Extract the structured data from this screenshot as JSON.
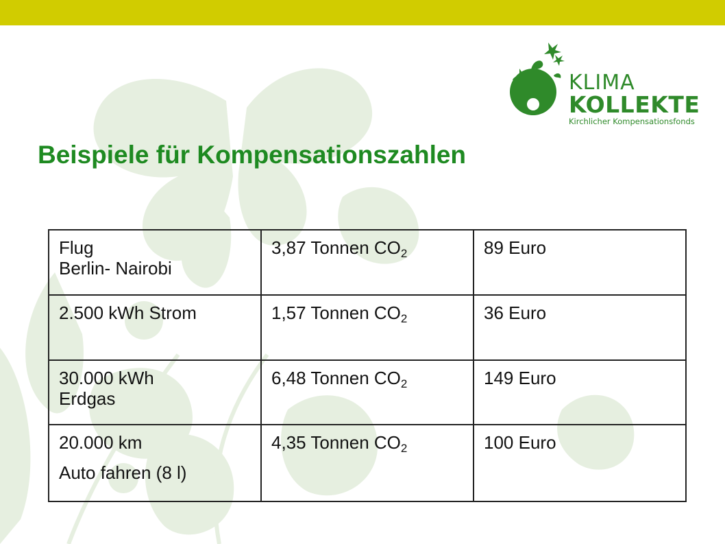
{
  "slide": {
    "title": "Beispiele für Kompensationszahlen",
    "colors": {
      "band": "#d1cc00",
      "title": "#1e8a21",
      "logo": "#2f8a2a",
      "watermark": "#e6efe0"
    }
  },
  "logo": {
    "line1": "KLIMA",
    "line2": "KOLLEKTE",
    "line3": "Kirchlicher Kompensationsfonds"
  },
  "table": {
    "rows": [
      {
        "label_lines": [
          "Flug",
          "Berlin- Nairobi"
        ],
        "co2": "3,87 Tonnen CO",
        "co2_sub": "2",
        "price": "89 Euro"
      },
      {
        "label_lines": [
          "2.500 kWh Strom"
        ],
        "co2": "1,57 Tonnen CO",
        "co2_sub": "2",
        "price": "36 Euro"
      },
      {
        "label_lines": [
          "30.000 kWh",
          "Erdgas"
        ],
        "co2": "6,48 Tonnen CO",
        "co2_sub": "2",
        "price": "149 Euro"
      },
      {
        "label_lines": [
          "20.000 km",
          "Auto fahren (8 l)"
        ],
        "co2": "4,35 Tonnen CO",
        "co2_sub": "2",
        "price": "100 Euro"
      }
    ]
  }
}
